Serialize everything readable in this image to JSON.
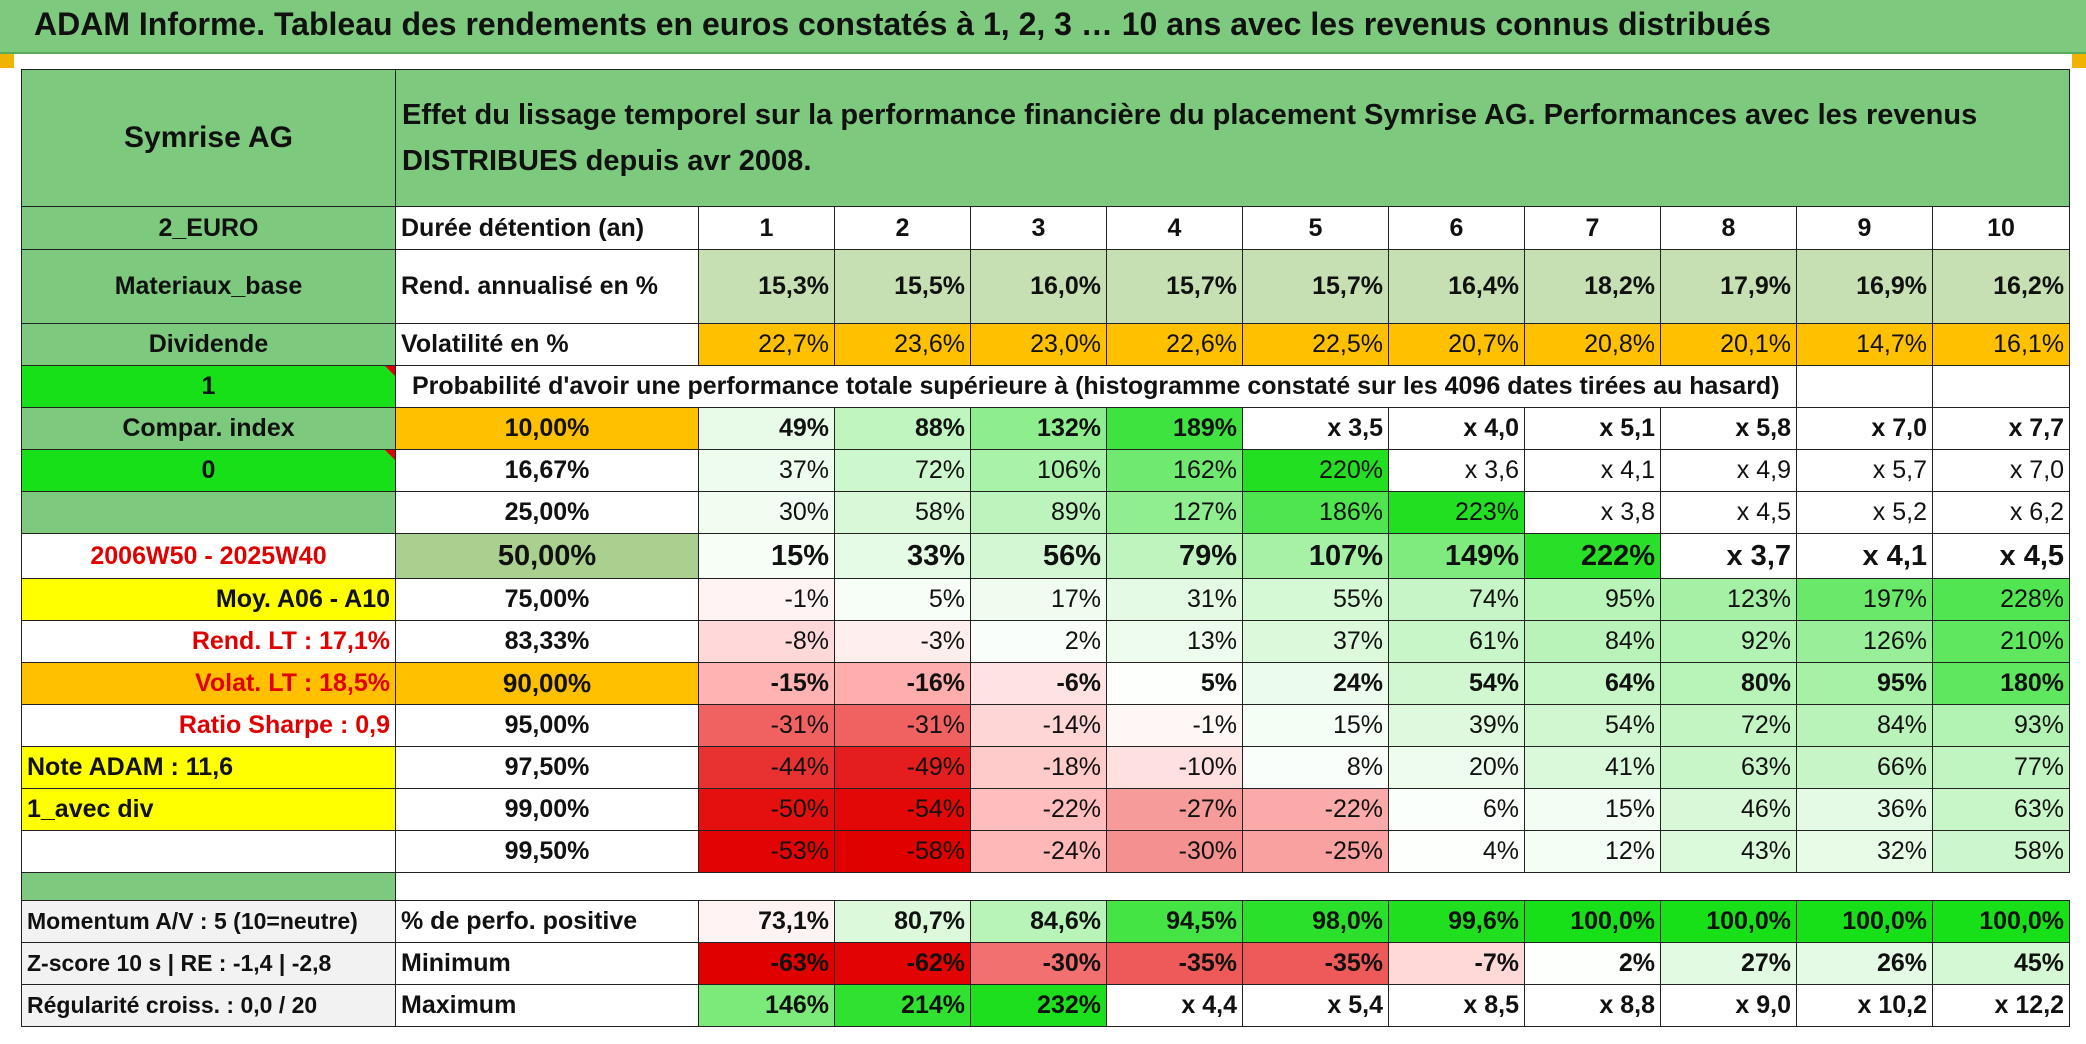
{
  "title": "ADAM Informe. Tableau des rendements en euros constatés à 1, 2, 3 … 10 ans avec les revenus connus distribués",
  "colors": {
    "header_green": "#7dc97d",
    "light_green": "#c6e0b4",
    "lime": "#18e018",
    "yellow": "#ffff00",
    "orange": "#ffc000",
    "red_text": "#e00000"
  },
  "left_panel": {
    "company": "Symrise AG",
    "currency": "2_EURO",
    "sector": "Materiaux_base",
    "income_type": "Dividende",
    "flag_1": "1",
    "compar_index": "Compar. index",
    "flag_0": "0",
    "period": "2006W50 - 2025W40",
    "moy": "Moy. A06 - A10",
    "rend_lt": "Rend. LT :   17,1%",
    "volat_lt": "Volat. LT :   18,5%",
    "sharpe": "Ratio Sharpe :    0,9",
    "note": "Note ADAM : 11,6",
    "variant": "1_avec div",
    "momentum": "Momentum A/V : 5 (10=neutre)",
    "zscore": "Z-score 10 s | RE : -1,4 | -2,8",
    "regularite": "Régularité croiss. : 0,0 / 20"
  },
  "header": {
    "description": "Effet du lissage temporel sur la performance financière du placement Symrise AG. Performances avec les revenus DISTRIBUES depuis avr 2008.",
    "duration_label": "Durée détention (an)",
    "years": [
      "1",
      "2",
      "3",
      "4",
      "5",
      "6",
      "7",
      "8",
      "9",
      "10"
    ]
  },
  "rend": {
    "label": "Rend. annualisé en %",
    "values": [
      "15,3%",
      "15,5%",
      "16,0%",
      "15,7%",
      "15,7%",
      "16,4%",
      "18,2%",
      "17,9%",
      "16,9%",
      "16,2%"
    ]
  },
  "volat": {
    "label": "Volatilité en %",
    "values": [
      "22,7%",
      "23,6%",
      "23,0%",
      "22,6%",
      "22,5%",
      "20,7%",
      "20,8%",
      "20,1%",
      "14,7%",
      "16,1%"
    ]
  },
  "prob_title": "Probabilité d'avoir une performance totale supérieure à (histogramme constaté sur les 4096 dates tirées au hasard)",
  "prob_rows": [
    {
      "pct": "10,00%",
      "values": [
        "49%",
        "88%",
        "132%",
        "189%",
        "x 3,5",
        "x 4,0",
        "x 5,1",
        "x 5,8",
        "x 7,0",
        "x 7,7"
      ]
    },
    {
      "pct": "16,67%",
      "values": [
        "37%",
        "72%",
        "106%",
        "162%",
        "220%",
        "x 3,6",
        "x 4,1",
        "x 4,9",
        "x 5,7",
        "x 7,0"
      ]
    },
    {
      "pct": "25,00%",
      "values": [
        "30%",
        "58%",
        "89%",
        "127%",
        "186%",
        "223%",
        "x 3,8",
        "x 4,5",
        "x 5,2",
        "x 6,2"
      ]
    },
    {
      "pct": "50,00%",
      "values": [
        "15%",
        "33%",
        "56%",
        "79%",
        "107%",
        "149%",
        "222%",
        "x 3,7",
        "x 4,1",
        "x 4,5"
      ]
    },
    {
      "pct": "75,00%",
      "values": [
        "-1%",
        "5%",
        "17%",
        "31%",
        "55%",
        "74%",
        "95%",
        "123%",
        "197%",
        "228%"
      ]
    },
    {
      "pct": "83,33%",
      "values": [
        "-8%",
        "-3%",
        "2%",
        "13%",
        "37%",
        "61%",
        "84%",
        "92%",
        "126%",
        "210%"
      ]
    },
    {
      "pct": "90,00%",
      "values": [
        "-15%",
        "-16%",
        "-6%",
        "5%",
        "24%",
        "54%",
        "64%",
        "80%",
        "95%",
        "180%"
      ]
    },
    {
      "pct": "95,00%",
      "values": [
        "-31%",
        "-31%",
        "-14%",
        "-1%",
        "15%",
        "39%",
        "54%",
        "72%",
        "84%",
        "93%"
      ]
    },
    {
      "pct": "97,50%",
      "values": [
        "-44%",
        "-49%",
        "-18%",
        "-10%",
        "8%",
        "20%",
        "41%",
        "63%",
        "66%",
        "77%"
      ]
    },
    {
      "pct": "99,00%",
      "values": [
        "-50%",
        "-54%",
        "-22%",
        "-27%",
        "-22%",
        "6%",
        "15%",
        "46%",
        "36%",
        "63%"
      ]
    },
    {
      "pct": "99,50%",
      "values": [
        "-53%",
        "-58%",
        "-24%",
        "-30%",
        "-25%",
        "4%",
        "12%",
        "43%",
        "32%",
        "58%"
      ]
    }
  ],
  "stats": {
    "positive": {
      "label": "% de perfo. positive",
      "values": [
        "73,1%",
        "80,7%",
        "84,6%",
        "94,5%",
        "98,0%",
        "99,6%",
        "100,0%",
        "100,0%",
        "100,0%",
        "100,0%"
      ]
    },
    "minimum": {
      "label": "Minimum",
      "values": [
        "-63%",
        "-62%",
        "-30%",
        "-35%",
        "-35%",
        "-7%",
        "2%",
        "27%",
        "26%",
        "45%"
      ]
    },
    "maximum": {
      "label": "Maximum",
      "values": [
        "146%",
        "214%",
        "232%",
        "x 4,4",
        "x 5,4",
        "x 8,5",
        "x 8,8",
        "x 9,0",
        "x 10,2",
        "x 12,2"
      ]
    }
  }
}
